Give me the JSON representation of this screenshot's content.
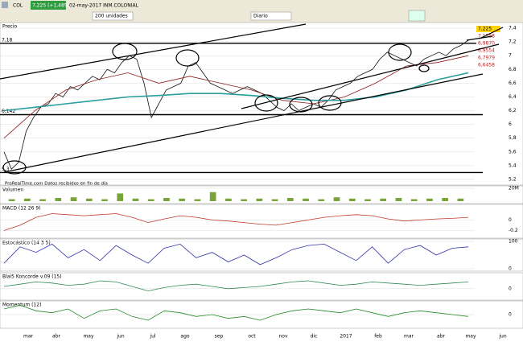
{
  "toolbar": {
    "symbol": "COL",
    "quote": "7,225 (+1,48%)",
    "date_name": "02-may-2017 INM.COLONIAL",
    "units": "200 unidades",
    "period": "Diario"
  },
  "footer": "ProRealTime.com  Datos recibidos en fin de día",
  "price_badges": [
    "7,225",
    "7,1558",
    "6,9870",
    "6,9554",
    "6,7979",
    "6,6458"
  ],
  "x_axis": {
    "labels": [
      "mar",
      "abr",
      "may",
      "jun",
      "jul",
      "ago",
      "sep",
      "oct",
      "nov",
      "dic",
      "2017",
      "feb",
      "mar",
      "abr",
      "may",
      "jun"
    ]
  },
  "chart_data": [
    {
      "type": "line",
      "title": "Precio",
      "ylim": [
        5.2,
        7.4
      ],
      "yticks": [
        {
          "value": 7.4,
          "label": "7,4"
        },
        {
          "value": 7.2,
          "label": "7,2"
        },
        {
          "value": 7,
          "label": "7"
        },
        {
          "value": 6.8,
          "label": "6,8"
        },
        {
          "value": 6.6,
          "label": "6,6"
        },
        {
          "value": 6.4,
          "label": "6,4"
        },
        {
          "value": 6.2,
          "label": "6,2"
        },
        {
          "value": 6,
          "label": "6"
        },
        {
          "value": 5.8,
          "label": "5,8"
        },
        {
          "value": 5.6,
          "label": "5,6"
        },
        {
          "value": 5.4,
          "label": "5,4"
        },
        {
          "value": 5.2,
          "label": "5,2"
        }
      ],
      "levels": [
        {
          "value": 7.18,
          "label": "7,18"
        },
        {
          "value": 6.142,
          "label": "6,142"
        },
        {
          "value": 5.3,
          "label": "5,3"
        }
      ],
      "series": [
        {
          "color": "#111111",
          "values": [
            5.6,
            5.35,
            5.45,
            5.9,
            6.1,
            6.25,
            6.3,
            6.45,
            6.4,
            6.55,
            6.5,
            6.6,
            6.7,
            6.65,
            6.8,
            6.75,
            6.9,
            7.0,
            6.95,
            6.6,
            6.1,
            6.3,
            6.5,
            6.55,
            6.6,
            6.85,
            6.9,
            6.75,
            6.6,
            6.55,
            6.5,
            6.45,
            6.5,
            6.55,
            6.5,
            6.45,
            6.35,
            6.25,
            6.2,
            6.3,
            6.2,
            6.25,
            6.3,
            6.25,
            6.35,
            6.5,
            6.55,
            6.6,
            6.7,
            6.75,
            6.8,
            6.95,
            7.05,
            7.0,
            6.95,
            6.9,
            6.85,
            6.95,
            7.0,
            7.05,
            7.0,
            7.1,
            7.15,
            7.225
          ]
        },
        {
          "color": "#8b1a1a",
          "values": [
            5.8,
            6.2,
            6.5,
            6.65,
            6.75,
            6.6,
            6.7,
            6.6,
            6.5,
            6.35,
            6.3,
            6.4,
            6.6,
            6.85,
            6.9,
            7.0
          ]
        },
        {
          "color": "#2a9d9d",
          "values": [
            6.2,
            6.25,
            6.3,
            6.35,
            6.4,
            6.42,
            6.45,
            6.45,
            6.42,
            6.38,
            6.35,
            6.35,
            6.4,
            6.5,
            6.65,
            6.75
          ]
        }
      ]
    },
    {
      "type": "bar",
      "title": "Volumen",
      "ylim": [
        0,
        20
      ],
      "yticks": [
        {
          "value": 20,
          "label": "20M"
        }
      ],
      "color": "#7aa33a",
      "values": [
        3,
        4,
        3,
        5,
        6,
        4,
        3,
        12,
        4,
        3,
        5,
        4,
        3,
        14,
        4,
        3,
        4,
        3,
        5,
        4,
        3,
        6,
        4,
        3,
        4,
        5,
        3,
        4,
        5,
        4
      ]
    },
    {
      "type": "line",
      "title": "MACD (12 26 9)",
      "ylim": [
        -0.3,
        0.25
      ],
      "yticks": [
        0,
        -0.2
      ],
      "series": [
        {
          "color": "#c0392b",
          "values": [
            -0.2,
            -0.1,
            0.05,
            0.12,
            0.1,
            0.08,
            0.1,
            0.12,
            0.05,
            -0.05,
            0.02,
            0.08,
            0.05,
            0,
            -0.02,
            -0.05,
            -0.08,
            -0.1,
            -0.05,
            0,
            0.05,
            0.08,
            0.1,
            0.08,
            0.02,
            -0.02,
            0,
            0.02,
            0.03,
            0.05
          ]
        }
      ]
    },
    {
      "type": "line",
      "title": "Estocástico (14 3 5)",
      "ylim": [
        0,
        100
      ],
      "yticks": [
        100,
        0
      ],
      "series": [
        {
          "color": "#3333aa",
          "values": [
            20,
            80,
            60,
            90,
            40,
            70,
            30,
            85,
            50,
            20,
            75,
            90,
            40,
            60,
            25,
            50,
            15,
            40,
            70,
            85,
            90,
            60,
            30,
            80,
            20,
            70,
            85,
            50,
            75,
            80
          ]
        }
      ]
    },
    {
      "type": "line",
      "title": "Blai5 Koncorde v.09 (15)",
      "ylim": [
        -40,
        60
      ],
      "yticks": [
        0
      ],
      "series": [
        {
          "color": "#2e8b57",
          "values": [
            10,
            20,
            30,
            25,
            15,
            20,
            35,
            30,
            10,
            -10,
            5,
            15,
            20,
            10,
            0,
            5,
            10,
            20,
            30,
            35,
            25,
            15,
            20,
            30,
            25,
            20,
            15,
            20,
            25,
            30
          ]
        }
      ]
    },
    {
      "type": "line",
      "title": "Momentum (12)",
      "ylim": [
        -0.6,
        0.6
      ],
      "yticks": [
        0
      ],
      "series": [
        {
          "color": "#228b22",
          "values": [
            0.3,
            0.5,
            0.2,
            0.1,
            0.3,
            -0.2,
            0.2,
            0.3,
            -0.1,
            -0.3,
            0.2,
            0.1,
            -0.1,
            0,
            -0.2,
            -0.1,
            -0.3,
            0,
            0.2,
            0.3,
            0.2,
            0.1,
            0.3,
            0.1,
            -0.1,
            0.1,
            0.2,
            0.1,
            0,
            -0.1
          ]
        }
      ]
    }
  ]
}
